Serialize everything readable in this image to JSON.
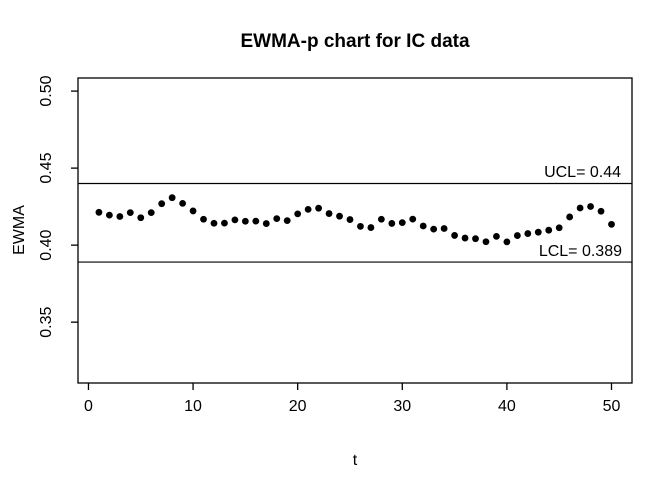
{
  "figure": {
    "background": "#ffffff",
    "frame_color": "#000000"
  },
  "chart_data": {
    "type": "scatter",
    "title": "EWMA-p chart for IC data",
    "xlabel": "t",
    "ylabel": "EWMA",
    "point_color": "#000000",
    "line_color": "#000000",
    "grid": false,
    "legend": "none",
    "xlim": [
      -1.0,
      51.96
    ],
    "ylim": [
      0.3105,
      0.5085
    ],
    "x_ticks": [
      0,
      10,
      20,
      30,
      40,
      50
    ],
    "x_tick_labels": [
      "0",
      "10",
      "20",
      "30",
      "40",
      "50"
    ],
    "y_ticks": [
      0.35,
      0.4,
      0.45,
      0.5
    ],
    "y_tick_labels": [
      "0.35",
      "0.40",
      "0.45",
      "0.50"
    ],
    "control_limits": {
      "ucl": {
        "value": 0.44,
        "label": "UCL= 0.44"
      },
      "lcl": {
        "value": 0.389,
        "label": "LCL= 0.389"
      }
    },
    "x": [
      1,
      2,
      3,
      4,
      5,
      6,
      7,
      8,
      9,
      10,
      11,
      12,
      13,
      14,
      15,
      16,
      17,
      18,
      19,
      20,
      21,
      22,
      23,
      24,
      25,
      26,
      27,
      28,
      29,
      30,
      31,
      32,
      33,
      34,
      35,
      36,
      37,
      38,
      39,
      40,
      41,
      42,
      43,
      44,
      45,
      46,
      47,
      48,
      49,
      50
    ],
    "y": [
      0.4213,
      0.4195,
      0.4186,
      0.4211,
      0.4178,
      0.4211,
      0.4269,
      0.4308,
      0.4271,
      0.4222,
      0.4168,
      0.4142,
      0.4143,
      0.4164,
      0.4155,
      0.4156,
      0.414,
      0.4172,
      0.4159,
      0.4203,
      0.4232,
      0.424,
      0.4205,
      0.4188,
      0.4166,
      0.4122,
      0.4114,
      0.4168,
      0.4141,
      0.4146,
      0.4169,
      0.4124,
      0.4104,
      0.4108,
      0.4063,
      0.4046,
      0.4042,
      0.4022,
      0.4057,
      0.4021,
      0.4062,
      0.4075,
      0.4084,
      0.4097,
      0.4113,
      0.4183,
      0.4241,
      0.4251,
      0.422,
      0.4135
    ]
  }
}
